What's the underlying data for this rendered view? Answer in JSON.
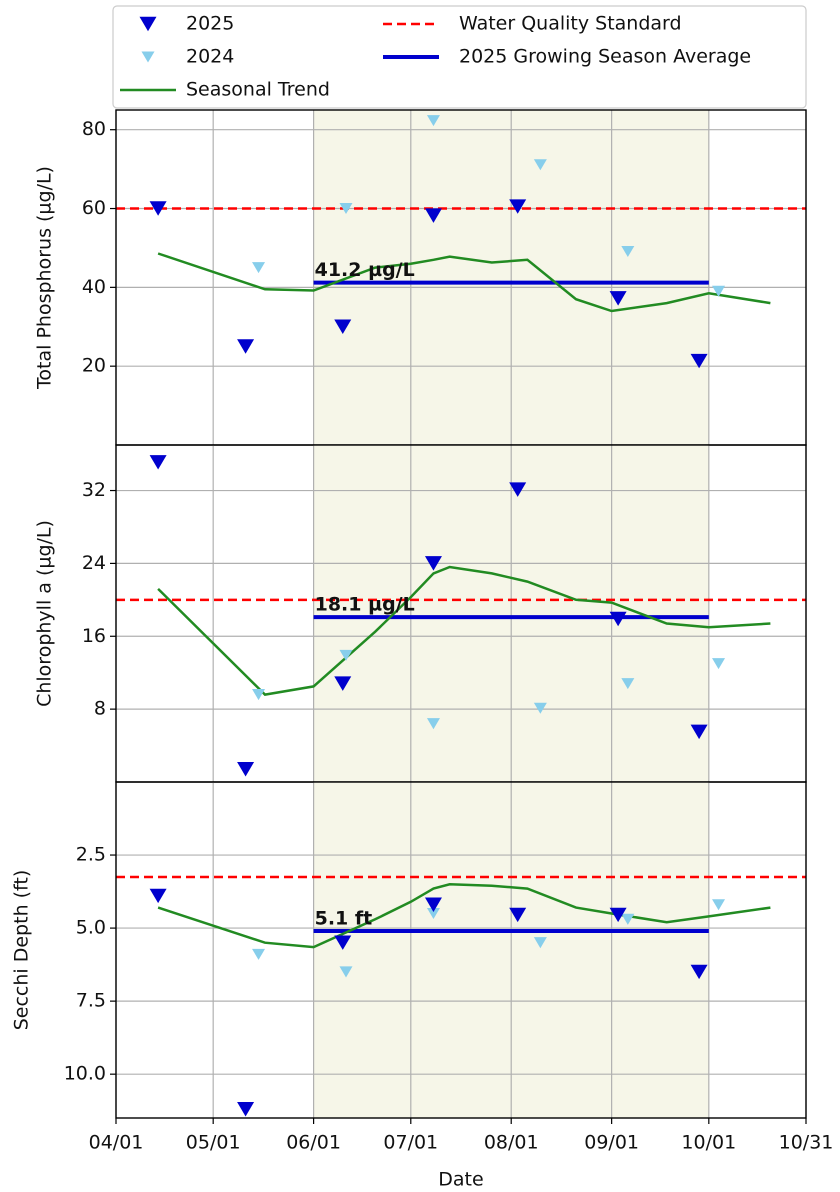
{
  "chart_data": {
    "type": "scatter",
    "xlabel": "Date",
    "xlim": [
      "04/01",
      "10/31"
    ],
    "xticks": [
      "04/01",
      "05/01",
      "06/01",
      "07/01",
      "08/01",
      "09/01",
      "10/01",
      "10/31"
    ],
    "growing_season": [
      "06/01",
      "10/01"
    ],
    "grid": true,
    "legend": "upper center",
    "series": [
      {
        "name": "2025",
        "color": "#0000cd"
      },
      {
        "name": "2024",
        "color": "#87ceeb"
      },
      {
        "name": "Seasonal Trend",
        "color": "#228b22"
      },
      {
        "name": "Water Quality Standard",
        "color": "#ff0000"
      },
      {
        "name": "2025 Growing Season Average",
        "color": "#0000cd"
      }
    ],
    "panels": [
      {
        "ylabel": "Total Phosphorus (µg/L)",
        "ylim": [
          0,
          85
        ],
        "yticks": [
          20,
          40,
          60,
          80
        ],
        "inverted": false,
        "series": [
          {
            "x": [
              "04/14",
              "05/11",
              "06/10",
              "07/08",
              "08/03",
              "09/03",
              "09/28"
            ],
            "values": [
              60,
              25,
              30,
              58.2,
              60.5,
              37.2,
              21.3
            ]
          },
          {
            "x": [
              "05/15",
              "06/11",
              "07/08",
              "08/10",
              "09/06",
              "10/04"
            ],
            "values": [
              45,
              60,
              82.3,
              71.1,
              49.1,
              39
            ]
          },
          {
            "x": [
              "04/14",
              "05/17",
              "06/01",
              "06/20",
              "07/01",
              "07/08",
              "07/13",
              "07/26",
              "08/06",
              "08/21",
              "09/01",
              "09/18",
              "10/01",
              "10/20"
            ],
            "values": [
              48.6,
              39.5,
              39.2,
              45,
              46,
              47,
              47.8,
              46.3,
              47,
              37,
              34,
              36,
              38.5,
              36
            ]
          }
        ],
        "standard": 60,
        "average": {
          "value": 41.2,
          "value_label": "41.2 µg/L"
        }
      },
      {
        "ylabel": "Chlorophyll a (µg/L)",
        "ylim": [
          0,
          37
        ],
        "yticks": [
          8,
          16,
          24,
          32
        ],
        "inverted": false,
        "series": [
          {
            "x": [
              "04/14",
              "05/11",
              "06/10",
              "07/08",
              "08/03",
              "09/03",
              "09/28"
            ],
            "values": [
              35.1,
              1.4,
              10.8,
              24,
              32.1,
              17.9,
              5.5
            ]
          },
          {
            "x": [
              "05/15",
              "06/11",
              "07/08",
              "08/10",
              "09/06",
              "10/04"
            ],
            "values": [
              9.6,
              13.9,
              6.4,
              8.1,
              10.8,
              13
            ]
          },
          {
            "x": [
              "04/14",
              "05/17",
              "06/01",
              "06/20",
              "07/01",
              "07/08",
              "07/13",
              "07/26",
              "08/06",
              "08/21",
              "09/01",
              "09/18",
              "10/01",
              "10/20"
            ],
            "values": [
              21.2,
              9.6,
              10.5,
              16.5,
              20.3,
              22.9,
              23.6,
              22.9,
              22,
              20,
              19.7,
              17.4,
              17,
              17.4
            ]
          }
        ],
        "standard": 20,
        "average": {
          "value": 18.1,
          "value_label": "18.1 µg/L"
        }
      },
      {
        "ylabel": "Secchi Depth (ft)",
        "ylim": [
          0,
          11.5
        ],
        "yticks": [
          2.5,
          {
            "value": 5,
            "label": "5.0"
          },
          7.5,
          {
            "value": 10,
            "label": "10.0"
          }
        ],
        "inverted": true,
        "series": [
          {
            "x": [
              "04/14",
              "05/11",
              "06/10",
              "07/08",
              "08/03",
              "09/03",
              "09/28"
            ],
            "values": [
              3.9,
              11.2,
              5.5,
              4.2,
              4.55,
              4.55,
              6.5
            ]
          },
          {
            "x": [
              "05/15",
              "06/11",
              "07/08",
              "08/10",
              "09/06",
              "10/04"
            ],
            "values": [
              5.9,
              6.5,
              4.5,
              5.5,
              4.7,
              4.2
            ]
          },
          {
            "x": [
              "04/14",
              "05/17",
              "06/01",
              "06/20",
              "07/01",
              "07/08",
              "07/13",
              "07/26",
              "08/06",
              "08/21",
              "09/01",
              "09/18",
              "10/01",
              "10/20"
            ],
            "values": [
              4.3,
              5.5,
              5.65,
              4.7,
              4.1,
              3.65,
              3.5,
              3.55,
              3.65,
              4.3,
              4.5,
              4.8,
              4.6,
              4.3
            ]
          }
        ],
        "standard": 3.25,
        "average": {
          "value": 5.1,
          "value_label": "5.1 ft"
        }
      }
    ]
  }
}
